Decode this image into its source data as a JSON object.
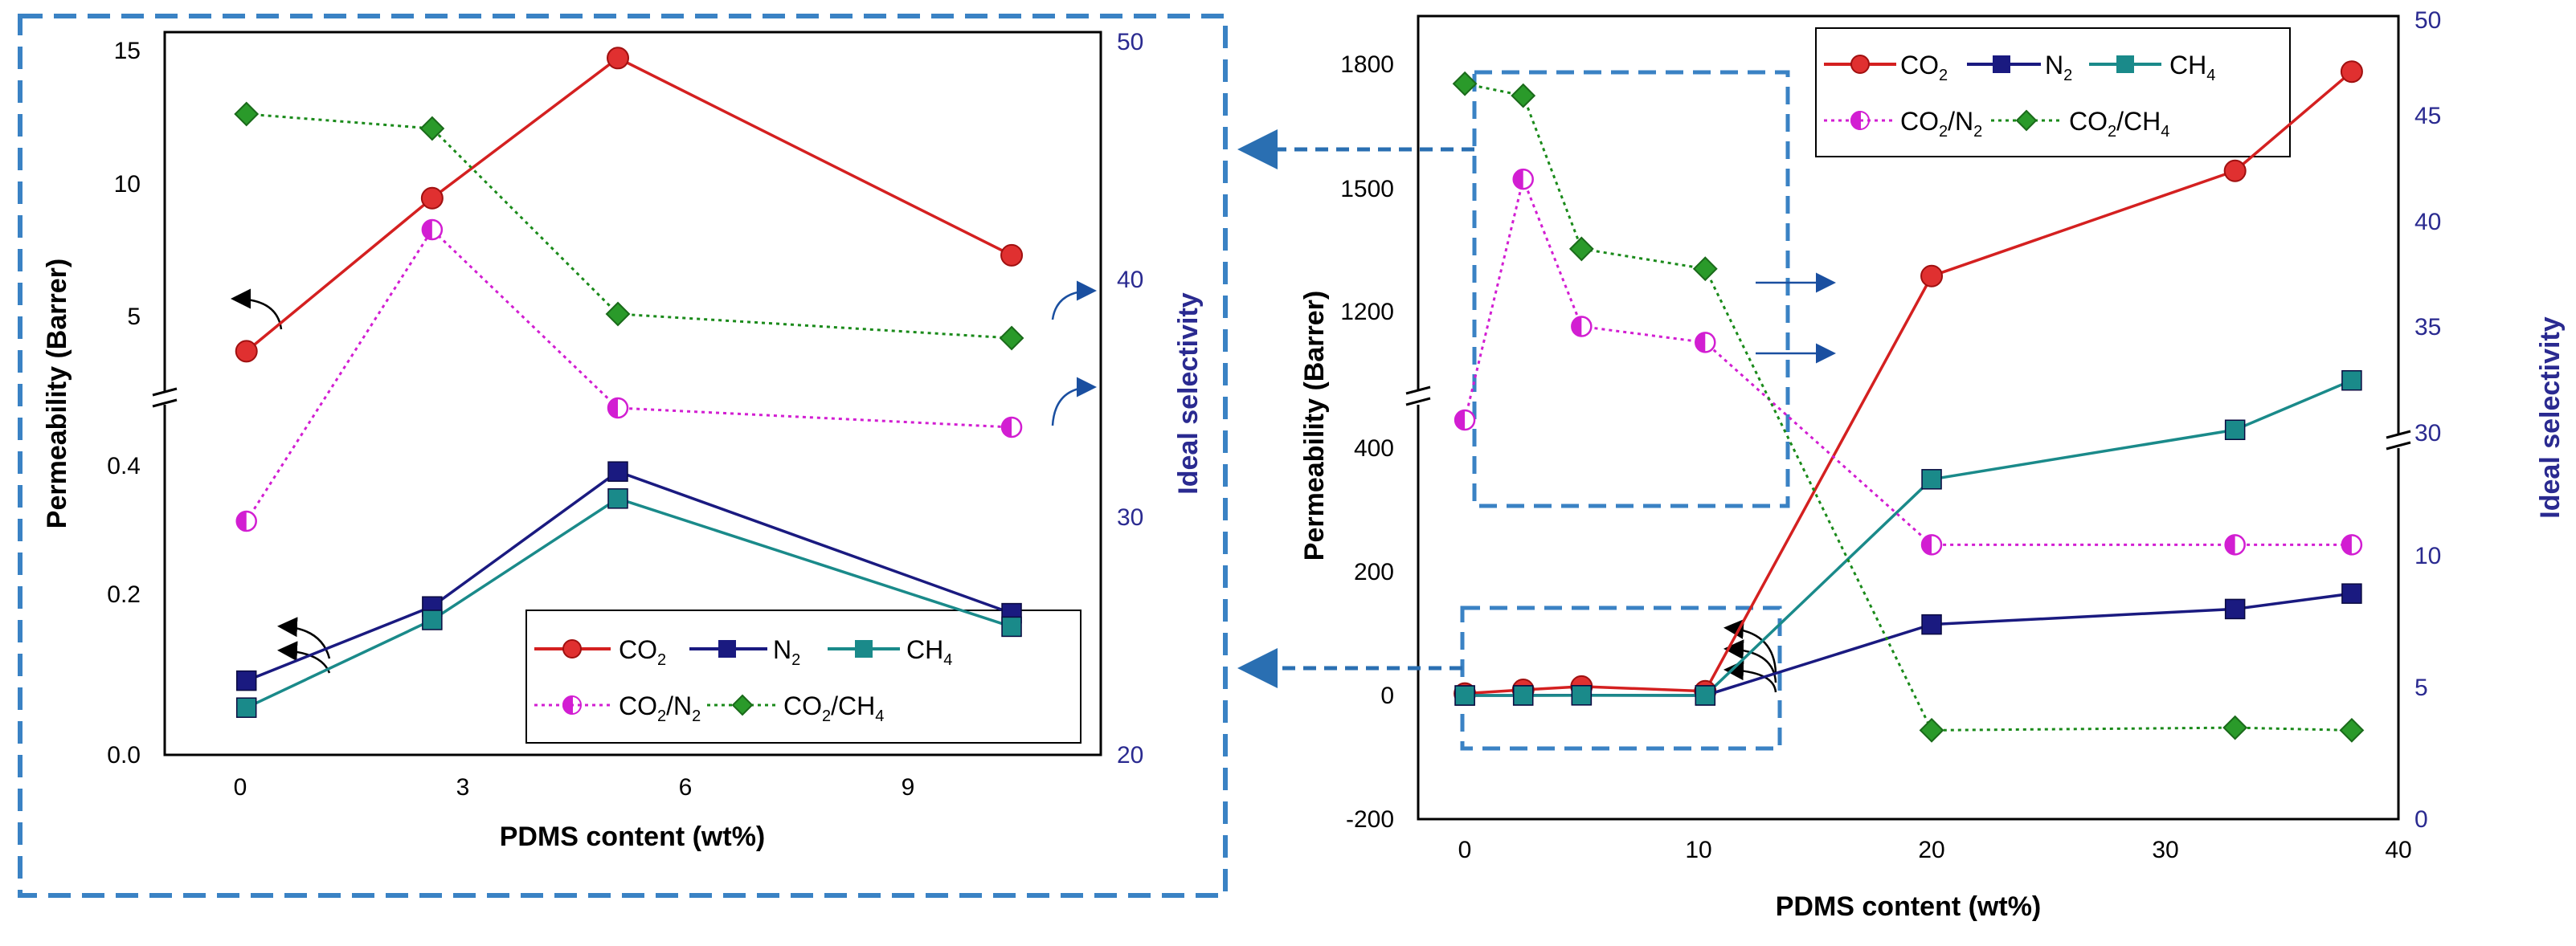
{
  "chart_data": [
    {
      "panel": "left-inset",
      "type": "line",
      "xlabel": "PDMS content (wt%)",
      "ylabel": "Permeability (Barrer)",
      "y2label": "Ideal selectivity",
      "x_ticks": [
        "0",
        "3",
        "6",
        "9"
      ],
      "y_lower_ticks": [
        "0.0",
        "0.2",
        "0.4"
      ],
      "y_upper_ticks": [
        "5",
        "10",
        "15"
      ],
      "y2_ticks": [
        "20",
        "30",
        "40",
        "50"
      ],
      "xlim": [
        -1.1,
        11.5
      ],
      "y_lower_range": [
        0.0,
        0.5
      ],
      "y_upper_range": [
        2.6,
        15.6
      ],
      "y2lim": [
        20,
        50
      ],
      "x": [
        0,
        2.5,
        5,
        10.3
      ],
      "series": [
        {
          "name": "CO2",
          "axis": "left",
          "values": [
            3.3,
            9.2,
            14.6,
            7.0
          ]
        },
        {
          "name": "N2",
          "axis": "left",
          "values": [
            0.11,
            0.22,
            0.42,
            0.21
          ]
        },
        {
          "name": "CH4",
          "axis": "left",
          "values": [
            0.07,
            0.2,
            0.38,
            0.19
          ]
        },
        {
          "name": "CO2/N2",
          "axis": "right",
          "values": [
            29.7,
            41.8,
            34.4,
            33.6
          ]
        },
        {
          "name": "CO2/CH4",
          "axis": "right",
          "values": [
            46.6,
            46.0,
            38.3,
            37.3
          ]
        }
      ]
    },
    {
      "panel": "right-main",
      "type": "line",
      "xlabel": "PDMS content (wt%)",
      "ylabel": "Permeability (Barrer)",
      "y2label": "Ideal selectivity",
      "x_ticks": [
        "0",
        "10",
        "20",
        "30",
        "40"
      ],
      "y_lower_ticks": [
        "-200",
        "0",
        "200",
        "400"
      ],
      "y_upper_ticks": [
        "1200",
        "1500",
        "1800"
      ],
      "y2_lower_ticks": [
        "0",
        "5",
        "10"
      ],
      "y2_upper_ticks": [
        "30",
        "35",
        "40",
        "45",
        "50"
      ],
      "xlim": [
        -2,
        40
      ],
      "y_lower_range": [
        -200,
        520
      ],
      "y_upper_range": [
        1010,
        1880
      ],
      "y2_lower_range": [
        0,
        13
      ],
      "y2_upper_range": [
        27.4,
        50
      ],
      "x": [
        0,
        2.5,
        5,
        10.3,
        20,
        33,
        38
      ],
      "series": [
        {
          "name": "CO2",
          "axis": "left",
          "values": [
            3.3,
            9.2,
            14.6,
            7.0,
            1225,
            1490,
            1740
          ]
        },
        {
          "name": "N2",
          "axis": "left",
          "values": [
            0.11,
            0.22,
            0.42,
            0.21,
            115,
            140,
            165
          ]
        },
        {
          "name": "CH4",
          "axis": "left",
          "values": [
            0.07,
            0.2,
            0.38,
            0.19,
            350,
            430,
            510
          ]
        },
        {
          "name": "CO2/N2",
          "axis": "right",
          "values": [
            29.7,
            41.8,
            34.4,
            33.6,
            10.5,
            10.5,
            10.5
          ]
        },
        {
          "name": "CO2/CH4",
          "axis": "right",
          "values": [
            46.6,
            46.0,
            38.3,
            37.3,
            3.4,
            3.5,
            3.4
          ]
        }
      ]
    }
  ],
  "legend": {
    "co2": {
      "main": "CO",
      "sub": "2"
    },
    "n2": {
      "main": "N",
      "sub": "2"
    },
    "ch4": {
      "main": "CH",
      "sub": "4"
    },
    "co2n2": {
      "a": "CO",
      "as": "2",
      "b": "/N",
      "bs": "2"
    },
    "co2ch4": {
      "a": "CO",
      "as": "2",
      "b": "/CH",
      "bs": "4"
    }
  },
  "colors": {
    "co2": "#d42020",
    "n2": "#1a1a80",
    "ch4": "#1a8a8a",
    "co2n2": "#d21ed2",
    "co2ch4": "#1a8a1a",
    "axis_right": "#2a2a90",
    "dashed_box": "#3a82c4"
  }
}
